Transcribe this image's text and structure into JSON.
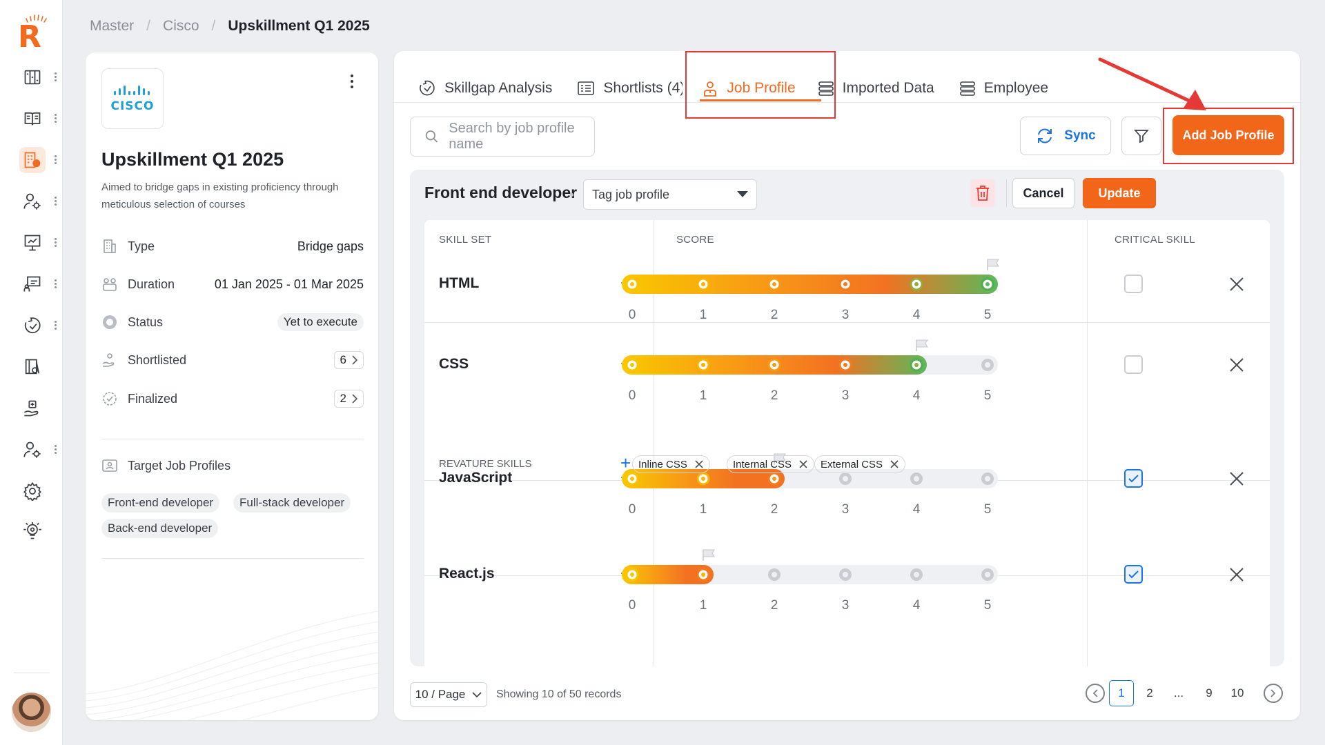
{
  "app": {
    "logo_letter": "R"
  },
  "sidebar": {
    "items": [
      {
        "icon": "roadmap-icon",
        "active": false,
        "has_menu": true
      },
      {
        "icon": "book-icon",
        "active": false,
        "has_menu": true
      },
      {
        "icon": "building-icon",
        "active": true,
        "has_menu": true
      },
      {
        "icon": "user-settings-icon",
        "active": false,
        "has_menu": true
      },
      {
        "icon": "presentation-icon",
        "active": false,
        "has_menu": true
      },
      {
        "icon": "classroom-icon",
        "active": false,
        "has_menu": true
      },
      {
        "icon": "skillgap-icon",
        "active": false,
        "has_menu": true
      },
      {
        "icon": "library-icon",
        "active": false,
        "has_menu": false
      },
      {
        "icon": "hand-support-icon",
        "active": false,
        "has_menu": false
      },
      {
        "icon": "user-gear-icon",
        "active": false,
        "has_menu": true
      },
      {
        "icon": "gear-icon",
        "active": false,
        "has_menu": false
      },
      {
        "icon": "idea-icon",
        "active": false,
        "has_menu": false
      }
    ]
  },
  "breadcrumb": {
    "items": [
      "Master",
      "Cisco"
    ],
    "current": "Upskillment Q1 2025"
  },
  "program": {
    "logo_text": "CISCO",
    "title": "Upskillment Q1 2025",
    "description": "Aimed to bridge gaps in existing proficiency through meticulous selection of courses",
    "meta": {
      "type_label": "Type",
      "type_value": "Bridge gaps",
      "duration_label": "Duration",
      "duration_value": "01 Jan 2025 - 01 Mar 2025",
      "status_label": "Status",
      "status_value": "Yet to execute",
      "shortlisted_label": "Shortlisted",
      "shortlisted_value": "6",
      "finalized_label": "Finalized",
      "finalized_value": "2"
    },
    "target_label": "Target Job Profiles",
    "target_profiles": [
      "Front-end developer",
      "Full-stack developer",
      "Back-end developer"
    ]
  },
  "tabs": [
    "Skillgap Analysis",
    "Shortlists (4)",
    "Job Profile",
    "Imported Data",
    "Employee"
  ],
  "active_tab": "Job Profile",
  "toolbar": {
    "search_placeholder": "Search by job profile name",
    "sync_label": "Sync",
    "add_label": "Add Job Profile"
  },
  "profile": {
    "title": "Front end developer",
    "tag_placeholder": "Tag job profile",
    "cancel_label": "Cancel",
    "update_label": "Update",
    "col_skillset": "SKILL SET",
    "col_score": "SCORE",
    "col_critical": "CRITICAL SKILL",
    "scale": [
      "0",
      "1",
      "2",
      "3",
      "4",
      "5"
    ],
    "skills": [
      {
        "name": "HTML",
        "score": 5,
        "critical": false
      },
      {
        "name": "CSS",
        "score": 4,
        "critical": false
      },
      {
        "name": "JavaScript",
        "score": 2,
        "critical": true
      },
      {
        "name": "React.js",
        "score": 1,
        "critical": true
      }
    ],
    "revature_label": "REVATURE SKILLS",
    "revature_skills": [
      "Inline CSS",
      "Internal CSS",
      "External CSS"
    ]
  },
  "pagination": {
    "per_page": "10 / Page",
    "showing": "Showing 10 of 50 records",
    "pages": [
      "1",
      "2",
      "...",
      "9",
      "10"
    ],
    "current": "1"
  },
  "colors": {
    "accent": "#f2661a",
    "link": "#1a73e8",
    "highlight": "#e53935"
  }
}
